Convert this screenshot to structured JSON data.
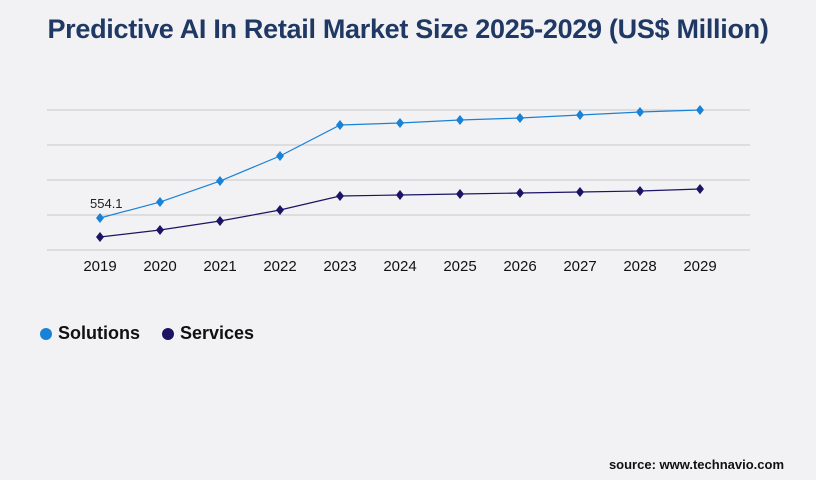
{
  "chart_data": {
    "type": "line",
    "title": "Predictive AI In Retail Market Size 2025-2029 (US$ Million)",
    "categories": [
      "2019",
      "2020",
      "2021",
      "2022",
      "2023",
      "2024",
      "2025",
      "2026",
      "2027",
      "2028",
      "2029"
    ],
    "series": [
      {
        "name": "Solutions",
        "color": "#1a82d6",
        "values": [
          554.1,
          831,
          1195,
          1628,
          2165,
          2200,
          2252,
          2286,
          2338,
          2390,
          2425
        ]
      },
      {
        "name": "Services",
        "color": "#1b1464",
        "values": [
          225,
          346,
          502,
          693,
          935,
          953,
          970,
          987,
          1005,
          1022,
          1057
        ]
      }
    ],
    "data_labels": [
      {
        "series": "Solutions",
        "category": "2019",
        "text": "554.1"
      }
    ],
    "ylim": [
      0,
      2425
    ],
    "grid": true,
    "y_tick_labels_shown": false,
    "legend_placement": "bottom-left"
  },
  "source": "source: www.technavio.com"
}
